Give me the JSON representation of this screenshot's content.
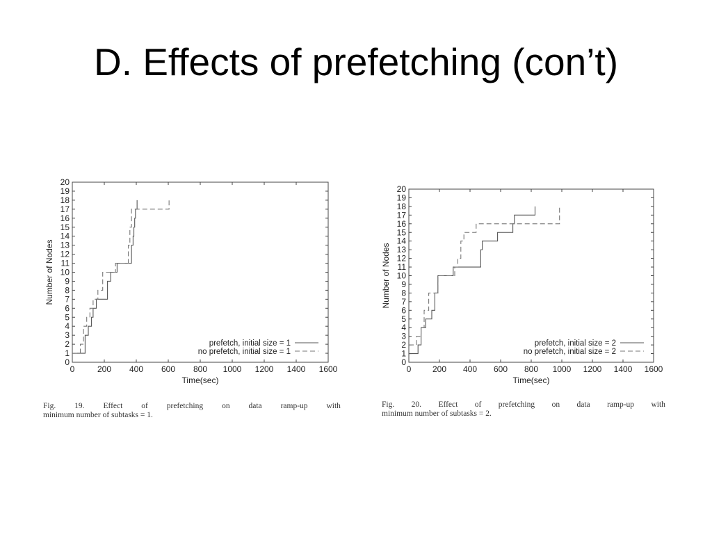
{
  "slide": {
    "title": "D. Effects of prefetching (con’t)"
  },
  "chart_data": [
    {
      "type": "line",
      "xlabel": "Time(sec)",
      "ylabel": "Number of Nodes",
      "xlim": [
        0,
        1600
      ],
      "ylim": [
        0,
        20
      ],
      "xticks": [
        0,
        200,
        400,
        600,
        800,
        1000,
        1200,
        1400,
        1600
      ],
      "yticks": [
        0,
        1,
        2,
        3,
        4,
        5,
        6,
        7,
        8,
        9,
        10,
        11,
        12,
        13,
        14,
        15,
        16,
        17,
        18,
        19,
        20
      ],
      "grid": false,
      "legend_position": "bottom-right",
      "series": [
        {
          "name": "prefetch, initial size = 1",
          "style": "solid",
          "x": [
            0,
            60,
            80,
            100,
            120,
            130,
            150,
            200,
            220,
            240,
            280,
            320,
            370,
            380,
            385,
            390,
            395,
            400,
            405
          ],
          "y": [
            1,
            1,
            3,
            4,
            5,
            6,
            7,
            7,
            9,
            10,
            11,
            11,
            13,
            14,
            15,
            16,
            17,
            17,
            18
          ]
        },
        {
          "name": "no prefetch, initial size = 1",
          "style": "dashed",
          "x": [
            0,
            50,
            70,
            90,
            110,
            130,
            160,
            190,
            220,
            270,
            300,
            340,
            350,
            360,
            370,
            380,
            600,
            605
          ],
          "y": [
            1,
            2,
            4,
            5,
            6,
            7,
            8,
            10,
            10,
            11,
            11,
            11,
            13,
            15,
            17,
            17,
            17,
            18
          ]
        }
      ],
      "caption": "Fig. 19. Effect of prefetching on data ramp-up with minimum number of subtasks = 1."
    },
    {
      "type": "line",
      "xlabel": "Time(sec)",
      "ylabel": "Number of Nodes",
      "xlim": [
        0,
        1600
      ],
      "ylim": [
        0,
        20
      ],
      "xticks": [
        0,
        200,
        400,
        600,
        800,
        1000,
        1200,
        1400,
        1600
      ],
      "yticks": [
        0,
        1,
        2,
        3,
        4,
        5,
        6,
        7,
        8,
        9,
        10,
        11,
        12,
        13,
        14,
        15,
        16,
        17,
        18,
        19,
        20
      ],
      "grid": false,
      "legend_position": "bottom-right",
      "series": [
        {
          "name": "prefetch, initial size = 2",
          "style": "solid",
          "x": [
            0,
            60,
            80,
            110,
            150,
            170,
            190,
            280,
            290,
            450,
            470,
            480,
            580,
            680,
            690,
            820,
            825
          ],
          "y": [
            1,
            2,
            4,
            5,
            6,
            8,
            10,
            10,
            11,
            11,
            13,
            14,
            15,
            16,
            17,
            17,
            18
          ]
        },
        {
          "name": "no prefetch, initial size = 2",
          "style": "dashed",
          "x": [
            0,
            50,
            80,
            100,
            130,
            160,
            190,
            280,
            300,
            320,
            340,
            360,
            420,
            440,
            980,
            985
          ],
          "y": [
            2,
            3,
            4,
            6,
            8,
            8,
            10,
            10,
            11,
            12,
            14,
            15,
            15,
            16,
            16,
            18
          ]
        }
      ],
      "caption": "Fig. 20. Effect of prefetching on data ramp-up with minimum number of subtasks = 2."
    }
  ],
  "captions": [
    {
      "line1": [
        "Fig.",
        "19.",
        "Effect",
        "of",
        "prefetching",
        "on",
        "data",
        "ramp-up",
        "with"
      ],
      "line2": "minimum number of subtasks = 1."
    },
    {
      "line1": [
        "Fig.",
        "20.",
        "Effect",
        "of",
        "prefetching",
        "on",
        "data",
        "ramp-up",
        "with"
      ],
      "line2": "minimum number of subtasks = 2."
    }
  ]
}
